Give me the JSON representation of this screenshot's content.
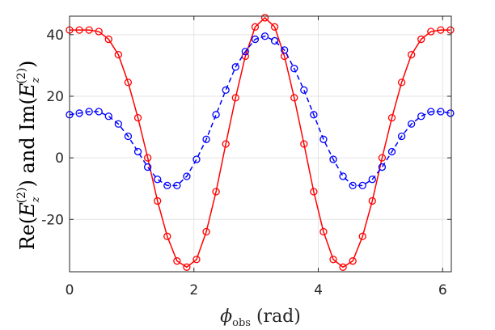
{
  "chart_data": {
    "type": "line",
    "xlabel": "phi_obs (rad)",
    "xlabel_parts": {
      "symbol": "ϕ",
      "subscript": "obs",
      "unit": "(rad)"
    },
    "ylabel": "Re(E_z^(2)) and Im(E_z^(2))",
    "ylabel_parts": {
      "re": "Re(",
      "E": "E",
      "sub": "z",
      "sup": "(2)",
      "close": ")",
      "and": " and ",
      "im": "Im("
    },
    "xlim": [
      0,
      6.14
    ],
    "ylim": [
      -37,
      46
    ],
    "xticks": [
      0,
      2,
      4,
      6
    ],
    "xtick_labels": [
      "0",
      "2",
      "4",
      "6"
    ],
    "yticks": [
      -20,
      0,
      20,
      40
    ],
    "ytick_labels": [
      "-20",
      "0",
      "20",
      "40"
    ],
    "grid": true,
    "series": [
      {
        "name": "Re(E_z^(2))",
        "color": "#ff0000",
        "line_style": "solid",
        "marker": "circle",
        "x": [
          0,
          0.157,
          0.314,
          0.471,
          0.628,
          0.785,
          0.942,
          1.1,
          1.257,
          1.414,
          1.571,
          1.728,
          1.885,
          2.042,
          2.199,
          2.356,
          2.513,
          2.67,
          2.827,
          2.985,
          3.142,
          3.299,
          3.456,
          3.613,
          3.77,
          3.927,
          4.084,
          4.241,
          4.398,
          4.555,
          4.712,
          4.869,
          5.027,
          5.184,
          5.341,
          5.498,
          5.655,
          5.812,
          5.969,
          6.126
        ],
        "y": [
          41.5,
          41.5,
          41.5,
          41,
          38.5,
          33.5,
          24.5,
          13,
          0,
          -14,
          -25.5,
          -33.5,
          -35.5,
          -33,
          -24,
          -11,
          4.5,
          19.5,
          33,
          42.5,
          45.5,
          42.5,
          33,
          19.5,
          4.5,
          -11,
          -24,
          -33,
          -35.5,
          -33.5,
          -25.5,
          -14,
          0,
          13,
          24.5,
          33.5,
          38.5,
          41,
          41.5,
          41.5
        ]
      },
      {
        "name": "Im(E_z^(2))",
        "color": "#0000ff",
        "line_style": "dashed",
        "marker": "circle",
        "x": [
          0,
          0.157,
          0.314,
          0.471,
          0.628,
          0.785,
          0.942,
          1.1,
          1.257,
          1.414,
          1.571,
          1.728,
          1.885,
          2.042,
          2.199,
          2.356,
          2.513,
          2.67,
          2.827,
          2.985,
          3.142,
          3.299,
          3.456,
          3.613,
          3.77,
          3.927,
          4.084,
          4.241,
          4.398,
          4.555,
          4.712,
          4.869,
          5.027,
          5.184,
          5.341,
          5.498,
          5.655,
          5.812,
          5.969,
          6.126
        ],
        "y": [
          14,
          14.5,
          15,
          15,
          13.5,
          11,
          7,
          2,
          -3,
          -7,
          -9,
          -9,
          -6,
          -0.5,
          6,
          14,
          22,
          29.5,
          34.5,
          38.5,
          39.5,
          38,
          35,
          29,
          22,
          14,
          6,
          -0.5,
          -6,
          -9,
          -9,
          -7,
          -3,
          2,
          7,
          11,
          13.5,
          15,
          15,
          14.5
        ]
      }
    ]
  }
}
